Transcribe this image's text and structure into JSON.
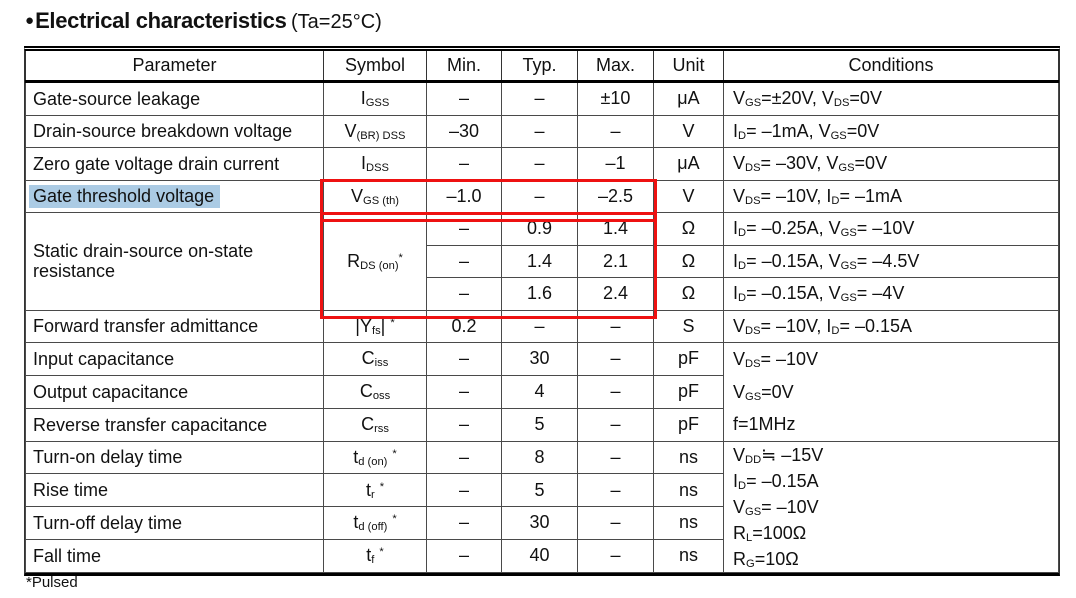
{
  "title": {
    "bullet": "●",
    "main": "Electrical characteristics",
    "suffix": "(Ta=25°C)"
  },
  "footnote": "*Pulsed",
  "colors": {
    "highlight": "#abcbe4",
    "red_box": "#ee1111"
  },
  "table": {
    "headers": [
      "Parameter",
      "Symbol",
      "Min.",
      "Typ.",
      "Max.",
      "Unit",
      "Conditions"
    ],
    "rows": [
      {
        "param": "Gate-source leakage",
        "symbol": "I~GSS~",
        "min": "–",
        "typ": "–",
        "max": "±10",
        "unit": "μA",
        "cond": "V~GS~=±20V, V~DS~=0V"
      },
      {
        "param": "Drain-source breakdown voltage",
        "symbol": "V~(BR) DSS~",
        "min": "–30",
        "typ": "–",
        "max": "–",
        "unit": "V",
        "cond": "I~D~= –1mA, V~GS~=0V"
      },
      {
        "param": "Zero gate voltage drain current",
        "symbol": "I~DSS~",
        "min": "–",
        "typ": "–",
        "max": "–1",
        "unit": "μA",
        "cond": "V~DS~= –30V, V~GS~=0V"
      },
      {
        "param": "Gate threshold voltage",
        "symbol": "V~GS (th)~",
        "min": "–1.0",
        "typ": "–",
        "max": "–2.5",
        "unit": "V",
        "cond": "V~DS~= –10V, I~D~= –1mA",
        "highlighted": true
      },
      {
        "param": "Static drain-source on-state resistance",
        "symbol": "R~DS (on)~^*^",
        "min": "–",
        "typ": "0.9",
        "max": "1.4",
        "unit": "Ω",
        "cond": "I~D~= –0.25A, V~GS~= –10V"
      },
      {
        "min": "–",
        "typ": "1.4",
        "max": "2.1",
        "unit": "Ω",
        "cond": "I~D~= –0.15A, V~GS~= –4.5V"
      },
      {
        "min": "–",
        "typ": "1.6",
        "max": "2.4",
        "unit": "Ω",
        "cond": "I~D~= –0.15A, V~GS~= –4V"
      },
      {
        "param": "Forward transfer admittance",
        "symbol": "|Y~fs~| ^*^",
        "min": "0.2",
        "typ": "–",
        "max": "–",
        "unit": "S",
        "cond": "V~DS~= –10V, I~D~= –0.15A"
      },
      {
        "param": "Input capacitance",
        "symbol": "C~iss~",
        "min": "–",
        "typ": "30",
        "max": "–",
        "unit": "pF",
        "cond_lines": [
          "V~DS~= –10V",
          "V~GS~=0V",
          "f=1MHz"
        ]
      },
      {
        "param": "Output capacitance",
        "symbol": "C~oss~",
        "min": "–",
        "typ": "4",
        "max": "–",
        "unit": "pF"
      },
      {
        "param": "Reverse transfer capacitance",
        "symbol": "C~rss~",
        "min": "–",
        "typ": "5",
        "max": "–",
        "unit": "pF"
      },
      {
        "param": "Turn-on delay time",
        "symbol": "t~d (on)~  ^*^",
        "min": "–",
        "typ": "8",
        "max": "–",
        "unit": "ns",
        "cond_lines": [
          "V~DD~≒ –15V",
          "I~D~= –0.15A",
          "V~GS~= –10V",
          "R~L~=100Ω",
          "R~G~=10Ω"
        ]
      },
      {
        "param": "Rise time",
        "symbol": "t~r~  ^*^",
        "min": "–",
        "typ": "5",
        "max": "–",
        "unit": "ns"
      },
      {
        "param": "Turn-off delay time",
        "symbol": "t~d (off)~  ^*^",
        "min": "–",
        "typ": "30",
        "max": "–",
        "unit": "ns"
      },
      {
        "param": "Fall time",
        "symbol": "t~f~  ^*^",
        "min": "–",
        "typ": "40",
        "max": "–",
        "unit": "ns"
      }
    ]
  }
}
